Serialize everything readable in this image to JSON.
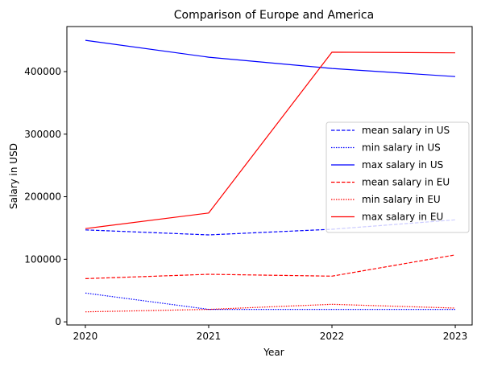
{
  "chart_data": {
    "type": "line",
    "title": "Comparison of Europe and America",
    "xlabel": "Year",
    "ylabel": "Salary in USD",
    "x": [
      2020,
      2021,
      2022,
      2023
    ],
    "x_tick_labels": [
      "2020",
      "2021",
      "2022",
      "2023"
    ],
    "xlim": [
      2019.85,
      2023.15
    ],
    "ylim": [
      -5000,
      472000
    ],
    "y_ticks": [
      0,
      100000,
      200000,
      300000,
      400000
    ],
    "y_tick_labels": [
      "0",
      "100000",
      "200000",
      "300000",
      "400000"
    ],
    "grid": false,
    "legend_placement": "center-right",
    "series": [
      {
        "name": "mean salary in US",
        "color": "#0000ff",
        "style": "dashed",
        "values": [
          147000,
          139000,
          148000,
          163000
        ]
      },
      {
        "name": "min salary in US",
        "color": "#0000ff",
        "style": "dotted",
        "values": [
          46000,
          20000,
          20000,
          20000
        ]
      },
      {
        "name": "max salary in US",
        "color": "#0000ff",
        "style": "solid",
        "values": [
          450000,
          423000,
          405000,
          392000
        ]
      },
      {
        "name": "mean salary in EU",
        "color": "#ff0000",
        "style": "dashed",
        "values": [
          69000,
          76000,
          73000,
          107000
        ]
      },
      {
        "name": "min salary in EU",
        "color": "#ff0000",
        "style": "dotted",
        "values": [
          16000,
          20000,
          28000,
          22000
        ]
      },
      {
        "name": "max salary in EU",
        "color": "#ff0000",
        "style": "solid",
        "values": [
          149000,
          174000,
          431000,
          430000
        ]
      }
    ]
  }
}
